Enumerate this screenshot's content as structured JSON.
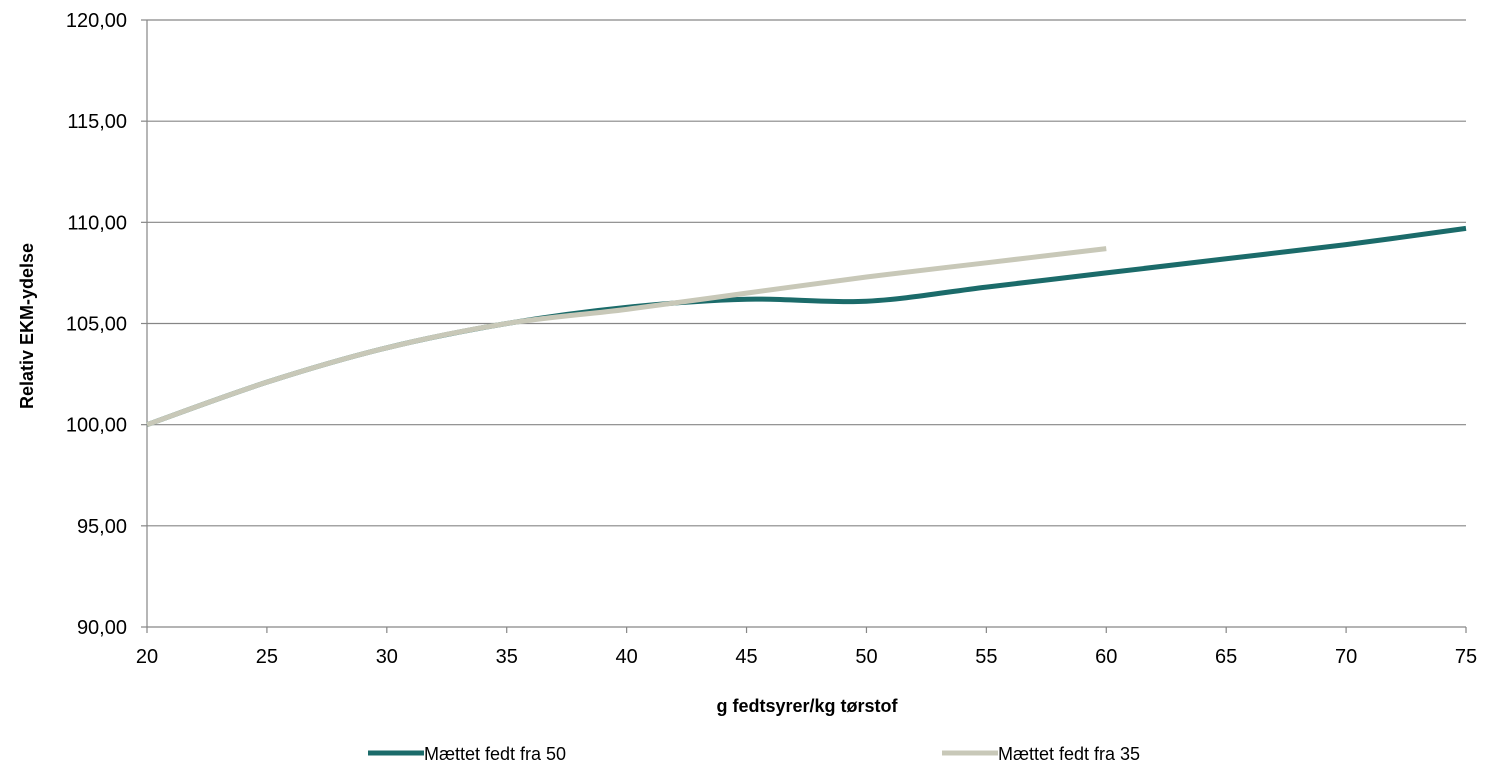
{
  "chart_data": {
    "type": "line",
    "xlabel": "g fedtsyrer/kg tørstof",
    "ylabel": "Relativ EKM-ydelse",
    "xlim": [
      20,
      75
    ],
    "ylim": [
      90,
      120
    ],
    "x_ticks": [
      "20",
      "25",
      "30",
      "35",
      "40",
      "45",
      "50",
      "55",
      "60",
      "65",
      "70",
      "75"
    ],
    "y_ticks": [
      "90,00",
      "95,00",
      "100,00",
      "105,00",
      "110,00",
      "115,00",
      "120,00"
    ],
    "grid": "horizontal",
    "legend_position": "bottom",
    "series": [
      {
        "name": "Mættet fedt fra 50",
        "color": "#1b6b6a",
        "x": [
          20,
          25,
          30,
          35,
          40,
          45,
          50,
          55,
          60,
          65,
          70,
          75
        ],
        "y": [
          100.0,
          102.1,
          103.8,
          105.0,
          105.8,
          106.2,
          106.1,
          106.8,
          107.5,
          108.2,
          108.9,
          109.7
        ]
      },
      {
        "name": "Mættet fedt fra 35",
        "color": "#c8c8b8",
        "x": [
          20,
          25,
          30,
          35,
          40,
          45,
          50,
          55,
          60
        ],
        "y": [
          100.0,
          102.1,
          103.8,
          105.0,
          105.7,
          106.5,
          107.3,
          108.0,
          108.7
        ]
      }
    ]
  }
}
